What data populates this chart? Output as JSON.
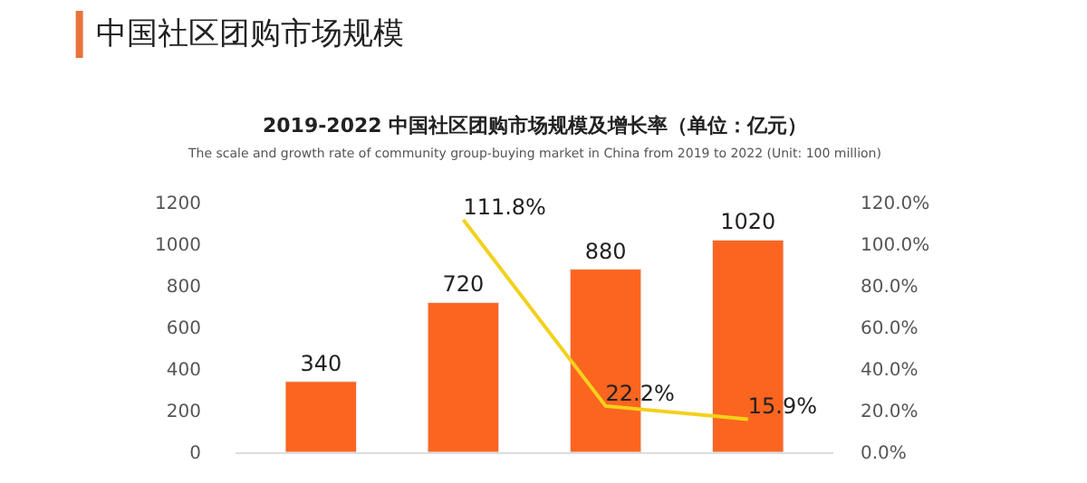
{
  "chart_data": {
    "type": "bar",
    "title": "中国社区团购市场规模",
    "subtitle": "2019-2022 中国社区团购市场规模及增长率（单位：亿元）",
    "annotations": [
      "The scale and growth rate of community group-buying market in China from 2019 to 2022 (Unit: 100 million)"
    ],
    "categories": [
      null,
      null,
      null,
      null
    ],
    "series": [
      {
        "color": "#fc6520",
        "values": [
          340,
          720,
          880,
          1020
        ]
      },
      {
        "type": "line",
        "axis": "y2",
        "color": "#f2d11c",
        "values": [
          null,
          111.8,
          22.2,
          15.9
        ],
        "value_labels": [
          null,
          "111.8%",
          "22.2%",
          "15.9%"
        ]
      }
    ],
    "data_labels": true,
    "marker": "none",
    "line_style": "solid",
    "ylim": [
      0,
      1200
    ],
    "yticks": [
      0,
      200,
      400,
      600,
      800,
      1000,
      1200
    ],
    "y2lim": [
      0,
      120
    ],
    "y2ticks": [
      {
        "value": 0,
        "label": "0.0%"
      },
      {
        "value": 20,
        "label": "20.0%"
      },
      {
        "value": 40,
        "label": "40.0%"
      },
      {
        "value": 60,
        "label": "60.0%"
      },
      {
        "value": 80,
        "label": "80.0%"
      },
      {
        "value": 100,
        "label": "100.0%"
      },
      {
        "value": 120,
        "label": "120.0%"
      }
    ]
  }
}
